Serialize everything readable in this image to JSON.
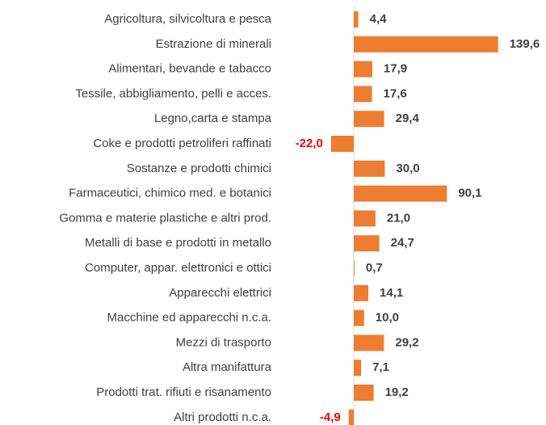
{
  "chart_data": {
    "type": "hbar",
    "categories": [
      "Agricoltura, silvicoltura e pesca",
      "Estrazione di minerali",
      "Alimentari, bevande e tabacco",
      "Tessile, abbigliamento, pelli e acces.",
      "Legno,carta e stampa",
      "Coke e prodotti petroliferi raffinati",
      "Sostanze e prodotti chimici",
      "Farmaceutici, chimico med. e botanici",
      "Gomma e materie plastiche e altri prod.",
      "Metalli di base e prodotti in metallo",
      "Computer, appar. elettronici e ottici",
      "Apparecchi elettrici",
      "Macchine ed apparecchi n.c.a.",
      "Mezzi di trasporto",
      "Altra manifattura",
      "Prodotti trat. rifiuti e risanamento",
      "Altri prodotti n.c.a."
    ],
    "values": [
      4.4,
      139.6,
      17.9,
      17.6,
      29.4,
      -22.0,
      30.0,
      90.1,
      21.0,
      24.7,
      0.7,
      14.1,
      10.0,
      29.2,
      7.1,
      19.2,
      -4.9
    ],
    "value_labels": [
      "4,4",
      "139,6",
      "17,9",
      "17,6",
      "29,4",
      "-22,0",
      "30,0",
      "90,1",
      "21,0",
      "24,7",
      "0,7",
      "14,1",
      "10,0",
      "29,2",
      "7,1",
      "19,2",
      "-4,9"
    ],
    "color": "#ed7d31",
    "negative_label_color": "#ff0000",
    "xlim": [
      -25,
      150
    ]
  }
}
